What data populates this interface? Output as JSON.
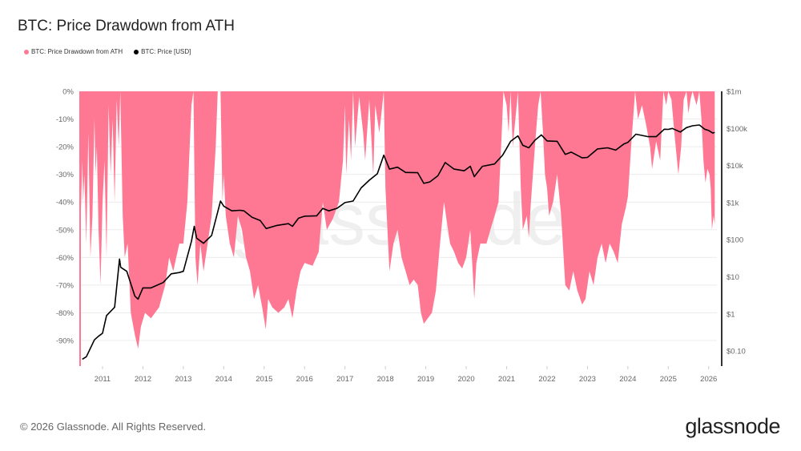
{
  "footer": {
    "copyright": "© 2026 Glassnode. All Rights Reserved.",
    "logo": "glassnode",
    "watermark": "glassnode"
  },
  "colors": {
    "drawdown": "#ff7893",
    "price": "#000000",
    "grid": "#ececec",
    "right_axis": "#333333"
  },
  "chart_data": {
    "type": "area",
    "title": "BTC: Price Drawdown from ATH",
    "legend": {
      "placement": "top-left",
      "entries": [
        "BTC: Price Drawdown from ATH",
        "BTC: Price [USD]"
      ]
    },
    "grid": true,
    "x_ticks": [
      "2011",
      "2012",
      "2013",
      "2014",
      "2015",
      "2016",
      "2017",
      "2018",
      "2019",
      "2020",
      "2021",
      "2022",
      "2023",
      "2024",
      "2025",
      "2026"
    ],
    "xlim": [
      2010.45,
      2026.15
    ],
    "y_left": {
      "label": "",
      "ticks": [
        "0%",
        "-10%",
        "-20%",
        "-30%",
        "-40%",
        "-50%",
        "-60%",
        "-70%",
        "-80%",
        "-90%"
      ],
      "lim": [
        -100,
        0
      ]
    },
    "y_right": {
      "label": "",
      "scale": "log",
      "ticks": [
        "$1m",
        "$100k",
        "$10k",
        "$1k",
        "$100",
        "$10",
        "$1",
        "$0.10"
      ],
      "lim": [
        0.05,
        1000000
      ]
    },
    "series": [
      {
        "name": "BTC: Price Drawdown from ATH",
        "axis": "left",
        "type": "area",
        "unit": "%",
        "points": [
          [
            2010.45,
            -50
          ],
          [
            2010.5,
            -25
          ],
          [
            2010.52,
            -40
          ],
          [
            2010.55,
            -30
          ],
          [
            2010.6,
            -55
          ],
          [
            2010.65,
            -15
          ],
          [
            2010.7,
            -60
          ],
          [
            2010.75,
            -45
          ],
          [
            2010.8,
            -10
          ],
          [
            2010.83,
            -30
          ],
          [
            2010.86,
            -20
          ],
          [
            2010.9,
            -50
          ],
          [
            2010.95,
            -70
          ],
          [
            2011.0,
            -40
          ],
          [
            2011.05,
            -25
          ],
          [
            2011.1,
            -60
          ],
          [
            2011.15,
            -5
          ],
          [
            2011.2,
            -30
          ],
          [
            2011.25,
            -10
          ],
          [
            2011.3,
            -40
          ],
          [
            2011.35,
            -3
          ],
          [
            2011.4,
            -20
          ],
          [
            2011.44,
            0
          ],
          [
            2011.5,
            -45
          ],
          [
            2011.55,
            -60
          ],
          [
            2011.62,
            -55
          ],
          [
            2011.7,
            -80
          ],
          [
            2011.8,
            -88
          ],
          [
            2011.88,
            -93
          ],
          [
            2011.95,
            -85
          ],
          [
            2012.05,
            -80
          ],
          [
            2012.2,
            -82
          ],
          [
            2012.4,
            -78
          ],
          [
            2012.55,
            -70
          ],
          [
            2012.65,
            -60
          ],
          [
            2012.75,
            -65
          ],
          [
            2012.9,
            -55
          ],
          [
            2013.0,
            -55
          ],
          [
            2013.1,
            -40
          ],
          [
            2013.2,
            -5
          ],
          [
            2013.25,
            0
          ],
          [
            2013.3,
            -60
          ],
          [
            2013.35,
            -70
          ],
          [
            2013.42,
            -55
          ],
          [
            2013.5,
            -65
          ],
          [
            2013.6,
            -55
          ],
          [
            2013.7,
            -45
          ],
          [
            2013.8,
            -20
          ],
          [
            2013.85,
            0
          ],
          [
            2013.92,
            0
          ],
          [
            2013.97,
            -40
          ],
          [
            2014.0,
            -30
          ],
          [
            2014.05,
            -45
          ],
          [
            2014.15,
            -55
          ],
          [
            2014.25,
            -60
          ],
          [
            2014.35,
            -45
          ],
          [
            2014.45,
            -50
          ],
          [
            2014.55,
            -60
          ],
          [
            2014.65,
            -65
          ],
          [
            2014.75,
            -75
          ],
          [
            2014.85,
            -70
          ],
          [
            2014.95,
            -78
          ],
          [
            2015.04,
            -86
          ],
          [
            2015.1,
            -75
          ],
          [
            2015.2,
            -78
          ],
          [
            2015.35,
            -80
          ],
          [
            2015.5,
            -78
          ],
          [
            2015.6,
            -75
          ],
          [
            2015.7,
            -82
          ],
          [
            2015.8,
            -72
          ],
          [
            2015.9,
            -65
          ],
          [
            2016.0,
            -62
          ],
          [
            2016.2,
            -63
          ],
          [
            2016.35,
            -58
          ],
          [
            2016.45,
            -40
          ],
          [
            2016.55,
            -50
          ],
          [
            2016.7,
            -46
          ],
          [
            2016.85,
            -40
          ],
          [
            2016.95,
            -25
          ],
          [
            2017.0,
            -5
          ],
          [
            2017.03,
            -30
          ],
          [
            2017.1,
            -10
          ],
          [
            2017.15,
            -25
          ],
          [
            2017.2,
            0
          ],
          [
            2017.25,
            -20
          ],
          [
            2017.35,
            -2
          ],
          [
            2017.45,
            -15
          ],
          [
            2017.5,
            -25
          ],
          [
            2017.6,
            -3
          ],
          [
            2017.7,
            -30
          ],
          [
            2017.75,
            -5
          ],
          [
            2017.85,
            -15
          ],
          [
            2017.96,
            0
          ],
          [
            2018.0,
            -35
          ],
          [
            2018.05,
            -50
          ],
          [
            2018.1,
            -65
          ],
          [
            2018.2,
            -55
          ],
          [
            2018.3,
            -50
          ],
          [
            2018.4,
            -60
          ],
          [
            2018.5,
            -65
          ],
          [
            2018.6,
            -70
          ],
          [
            2018.7,
            -68
          ],
          [
            2018.8,
            -70
          ],
          [
            2018.88,
            -80
          ],
          [
            2018.95,
            -84
          ],
          [
            2019.05,
            -82
          ],
          [
            2019.15,
            -80
          ],
          [
            2019.25,
            -72
          ],
          [
            2019.35,
            -55
          ],
          [
            2019.45,
            -40
          ],
          [
            2019.5,
            -45
          ],
          [
            2019.6,
            -55
          ],
          [
            2019.7,
            -58
          ],
          [
            2019.8,
            -62
          ],
          [
            2019.9,
            -64
          ],
          [
            2020.0,
            -60
          ],
          [
            2020.1,
            -50
          ],
          [
            2020.2,
            -75
          ],
          [
            2020.25,
            -62
          ],
          [
            2020.35,
            -55
          ],
          [
            2020.5,
            -55
          ],
          [
            2020.6,
            -50
          ],
          [
            2020.7,
            -45
          ],
          [
            2020.8,
            -40
          ],
          [
            2020.88,
            -15
          ],
          [
            2020.92,
            0
          ],
          [
            2021.0,
            -5
          ],
          [
            2021.05,
            -15
          ],
          [
            2021.1,
            0
          ],
          [
            2021.15,
            -20
          ],
          [
            2021.25,
            -5
          ],
          [
            2021.28,
            0
          ],
          [
            2021.35,
            -35
          ],
          [
            2021.4,
            -50
          ],
          [
            2021.5,
            -45
          ],
          [
            2021.55,
            -53
          ],
          [
            2021.6,
            -40
          ],
          [
            2021.7,
            -20
          ],
          [
            2021.78,
            -5
          ],
          [
            2021.84,
            0
          ],
          [
            2021.9,
            -15
          ],
          [
            2021.95,
            -30
          ],
          [
            2022.0,
            -35
          ],
          [
            2022.05,
            -45
          ],
          [
            2022.15,
            -40
          ],
          [
            2022.25,
            -30
          ],
          [
            2022.35,
            -45
          ],
          [
            2022.45,
            -70
          ],
          [
            2022.55,
            -72
          ],
          [
            2022.65,
            -65
          ],
          [
            2022.75,
            -72
          ],
          [
            2022.87,
            -77
          ],
          [
            2022.95,
            -75
          ],
          [
            2023.05,
            -65
          ],
          [
            2023.15,
            -70
          ],
          [
            2023.25,
            -60
          ],
          [
            2023.35,
            -55
          ],
          [
            2023.45,
            -62
          ],
          [
            2023.55,
            -55
          ],
          [
            2023.65,
            -58
          ],
          [
            2023.75,
            -62
          ],
          [
            2023.85,
            -48
          ],
          [
            2023.95,
            -42
          ],
          [
            2024.0,
            -38
          ],
          [
            2024.08,
            -20
          ],
          [
            2024.18,
            0
          ],
          [
            2024.25,
            -10
          ],
          [
            2024.35,
            -5
          ],
          [
            2024.45,
            -12
          ],
          [
            2024.55,
            -20
          ],
          [
            2024.6,
            -28
          ],
          [
            2024.7,
            -18
          ],
          [
            2024.8,
            -25
          ],
          [
            2024.88,
            0
          ],
          [
            2024.95,
            -5
          ],
          [
            2025.0,
            0
          ],
          [
            2025.08,
            -3
          ],
          [
            2025.15,
            -15
          ],
          [
            2025.25,
            -30
          ],
          [
            2025.32,
            -20
          ],
          [
            2025.38,
            -3
          ],
          [
            2025.45,
            0
          ],
          [
            2025.5,
            -8
          ],
          [
            2025.55,
            -3
          ],
          [
            2025.6,
            0
          ],
          [
            2025.7,
            -5
          ],
          [
            2025.77,
            0
          ],
          [
            2025.82,
            -10
          ],
          [
            2025.87,
            -25
          ],
          [
            2025.92,
            -33
          ],
          [
            2025.97,
            -28
          ],
          [
            2026.02,
            -30
          ],
          [
            2026.05,
            -35
          ],
          [
            2026.08,
            -50
          ],
          [
            2026.12,
            -45
          ],
          [
            2026.15,
            -48
          ]
        ]
      },
      {
        "name": "BTC: Price [USD]",
        "axis": "right",
        "type": "line",
        "unit": "USD",
        "points": [
          [
            2010.5,
            0.06
          ],
          [
            2010.6,
            0.07
          ],
          [
            2010.8,
            0.2
          ],
          [
            2010.9,
            0.25
          ],
          [
            2011.0,
            0.3
          ],
          [
            2011.1,
            0.9
          ],
          [
            2011.3,
            1.5
          ],
          [
            2011.42,
            30
          ],
          [
            2011.45,
            18
          ],
          [
            2011.6,
            14
          ],
          [
            2011.8,
            3
          ],
          [
            2011.88,
            2.5
          ],
          [
            2012.0,
            5
          ],
          [
            2012.1,
            5
          ],
          [
            2012.2,
            5
          ],
          [
            2012.5,
            7
          ],
          [
            2012.7,
            12
          ],
          [
            2012.9,
            13
          ],
          [
            2013.0,
            14
          ],
          [
            2013.2,
            90
          ],
          [
            2013.27,
            230
          ],
          [
            2013.33,
            110
          ],
          [
            2013.5,
            80
          ],
          [
            2013.7,
            130
          ],
          [
            2013.92,
            1100
          ],
          [
            2014.0,
            800
          ],
          [
            2014.2,
            600
          ],
          [
            2014.4,
            620
          ],
          [
            2014.5,
            600
          ],
          [
            2014.7,
            400
          ],
          [
            2014.9,
            330
          ],
          [
            2015.05,
            200
          ],
          [
            2015.3,
            240
          ],
          [
            2015.6,
            270
          ],
          [
            2015.7,
            230
          ],
          [
            2015.85,
            380
          ],
          [
            2016.0,
            430
          ],
          [
            2016.3,
            440
          ],
          [
            2016.45,
            700
          ],
          [
            2016.6,
            600
          ],
          [
            2016.8,
            700
          ],
          [
            2017.0,
            1000
          ],
          [
            2017.2,
            1100
          ],
          [
            2017.4,
            2500
          ],
          [
            2017.6,
            4000
          ],
          [
            2017.8,
            6000
          ],
          [
            2017.96,
            19000
          ],
          [
            2018.1,
            8000
          ],
          [
            2018.3,
            9000
          ],
          [
            2018.5,
            6500
          ],
          [
            2018.8,
            6400
          ],
          [
            2018.95,
            3300
          ],
          [
            2019.1,
            3600
          ],
          [
            2019.3,
            5300
          ],
          [
            2019.48,
            12000
          ],
          [
            2019.7,
            8000
          ],
          [
            2019.95,
            7200
          ],
          [
            2020.1,
            9500
          ],
          [
            2020.2,
            5000
          ],
          [
            2020.4,
            9500
          ],
          [
            2020.7,
            11000
          ],
          [
            2020.9,
            19000
          ],
          [
            2021.0,
            29000
          ],
          [
            2021.1,
            45000
          ],
          [
            2021.28,
            63000
          ],
          [
            2021.4,
            35000
          ],
          [
            2021.55,
            30000
          ],
          [
            2021.7,
            48000
          ],
          [
            2021.86,
            67000
          ],
          [
            2022.0,
            46000
          ],
          [
            2022.25,
            45000
          ],
          [
            2022.45,
            20000
          ],
          [
            2022.6,
            23000
          ],
          [
            2022.87,
            16000
          ],
          [
            2023.0,
            16500
          ],
          [
            2023.25,
            28000
          ],
          [
            2023.5,
            30000
          ],
          [
            2023.7,
            26000
          ],
          [
            2023.9,
            38000
          ],
          [
            2024.0,
            42000
          ],
          [
            2024.2,
            70000
          ],
          [
            2024.5,
            60000
          ],
          [
            2024.7,
            60000
          ],
          [
            2024.9,
            95000
          ],
          [
            2025.0,
            94000
          ],
          [
            2025.1,
            100000
          ],
          [
            2025.3,
            80000
          ],
          [
            2025.45,
            105000
          ],
          [
            2025.6,
            118000
          ],
          [
            2025.77,
            124000
          ],
          [
            2025.9,
            95000
          ],
          [
            2026.0,
            88000
          ],
          [
            2026.1,
            75000
          ],
          [
            2026.15,
            78000
          ]
        ]
      }
    ]
  }
}
